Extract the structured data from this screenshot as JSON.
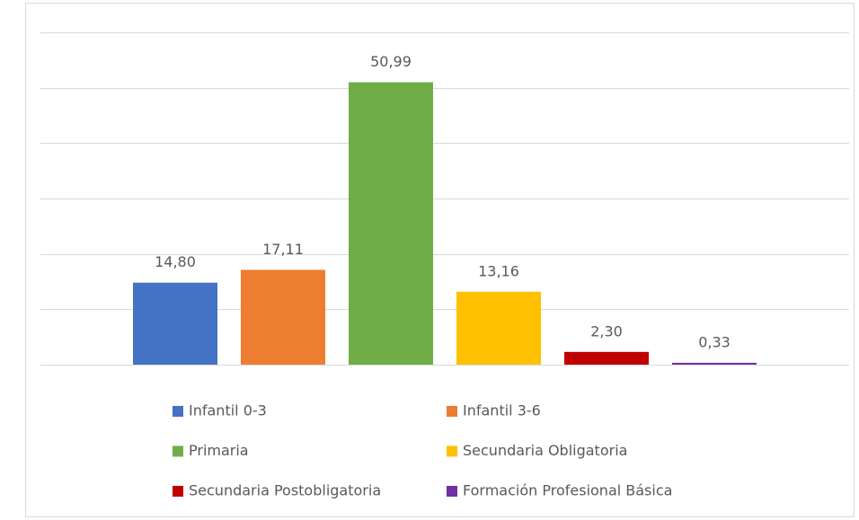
{
  "chart_data": {
    "type": "bar",
    "series": [
      {
        "name": "Infantil 0-3",
        "color": "#4472c4",
        "values": [
          14.8
        ],
        "value_labels": [
          "14,80"
        ]
      },
      {
        "name": "Infantil 3-6",
        "color": "#ed7d31",
        "values": [
          17.11
        ],
        "value_labels": [
          "17,11"
        ]
      },
      {
        "name": "Primaria",
        "color": "#70ad47",
        "values": [
          50.99
        ],
        "value_labels": [
          "50,99"
        ]
      },
      {
        "name": "Secundaria Obligatoria",
        "color": "#ffc000",
        "values": [
          13.16
        ],
        "value_labels": [
          "13,16"
        ]
      },
      {
        "name": "Secundaria Postobligatoria",
        "color": "#c00000",
        "values": [
          2.3
        ],
        "value_labels": [
          "2,30"
        ]
      },
      {
        "name": "Formación Profesional Básica",
        "color": "#7030a0",
        "values": [
          0.33
        ],
        "value_labels": [
          "0,33"
        ]
      }
    ],
    "ylim": [
      0,
      60
    ],
    "yticks": [
      0,
      10,
      20,
      30,
      40,
      50,
      60
    ],
    "grid": true,
    "legend": "bottom"
  }
}
